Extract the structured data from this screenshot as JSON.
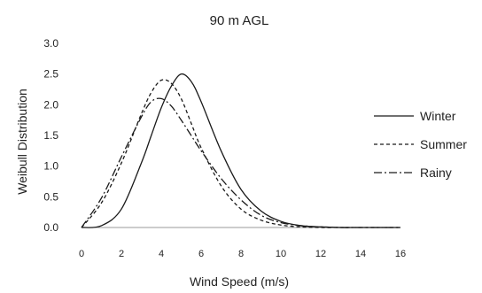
{
  "chart_data": {
    "type": "line",
    "title": "90 m AGL",
    "xlabel": "Wind Speed (m/s)",
    "ylabel": "Weibull Distribution",
    "xlim": [
      0,
      16
    ],
    "ylim": [
      0,
      3.0
    ],
    "x_ticks": [
      "0",
      "2",
      "4",
      "6",
      "8",
      "10",
      "12",
      "14",
      "16"
    ],
    "y_ticks": [
      "0.0",
      "0.5",
      "1.0",
      "1.5",
      "2.0",
      "2.5",
      "3.0"
    ],
    "grid": false,
    "legend_position": "right",
    "series": [
      {
        "name": "Winter",
        "style": "solid",
        "x": [
          0,
          1,
          2,
          3,
          3.5,
          4,
          4.5,
          5,
          5.5,
          6,
          7,
          8,
          9,
          10,
          11,
          12,
          13,
          14,
          16
        ],
        "y": [
          0.0,
          0.03,
          0.3,
          1.05,
          1.5,
          1.95,
          2.3,
          2.5,
          2.38,
          2.05,
          1.25,
          0.62,
          0.27,
          0.1,
          0.03,
          0.01,
          0.0,
          0.0,
          0.0
        ]
      },
      {
        "name": "Summer",
        "style": "dashed",
        "x": [
          0,
          1,
          2,
          3,
          3.5,
          4,
          4.5,
          5,
          5.5,
          6,
          7,
          8,
          9,
          10,
          11,
          12,
          13,
          14,
          16
        ],
        "y": [
          0.0,
          0.4,
          1.05,
          1.85,
          2.2,
          2.4,
          2.35,
          2.1,
          1.7,
          1.3,
          0.68,
          0.3,
          0.12,
          0.04,
          0.01,
          0.0,
          0.0,
          0.0,
          0.0
        ]
      },
      {
        "name": "Rainy",
        "style": "dash-dot",
        "x": [
          0,
          1,
          2,
          3,
          3.5,
          4,
          4.5,
          5,
          5.5,
          6,
          7,
          8,
          9,
          10,
          11,
          12,
          13,
          14,
          16
        ],
        "y": [
          0.0,
          0.48,
          1.15,
          1.8,
          2.05,
          2.1,
          1.98,
          1.75,
          1.5,
          1.25,
          0.8,
          0.45,
          0.2,
          0.08,
          0.03,
          0.01,
          0.0,
          0.0,
          0.0
        ]
      }
    ]
  }
}
